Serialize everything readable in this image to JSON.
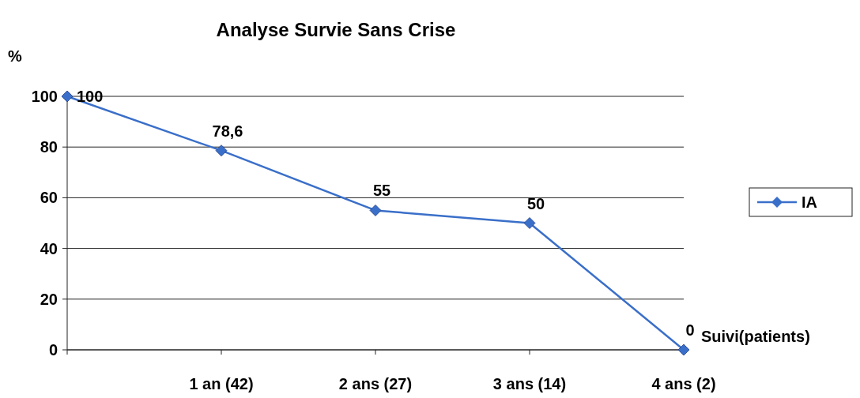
{
  "chart_data": {
    "type": "line",
    "title": "Analyse Survie Sans Crise",
    "ylabel": "%",
    "xlabel": "Suivi(patients)",
    "categories": [
      null,
      "1 an (42)",
      "2 ans (27)",
      "3 ans (14)",
      "4 ans (2)"
    ],
    "series": [
      {
        "name": "IA",
        "color": "#3a6fc9",
        "values": [
          100,
          78.6,
          55,
          50,
          0
        ]
      }
    ],
    "ylim": [
      0,
      100
    ],
    "yticks": [
      0,
      20,
      40,
      60,
      80,
      100
    ],
    "grid": "y",
    "legend": "right",
    "marker": "diamond",
    "line_style": "solid",
    "value_labels": [
      "100",
      "78,6",
      "55",
      "50",
      "0"
    ]
  }
}
